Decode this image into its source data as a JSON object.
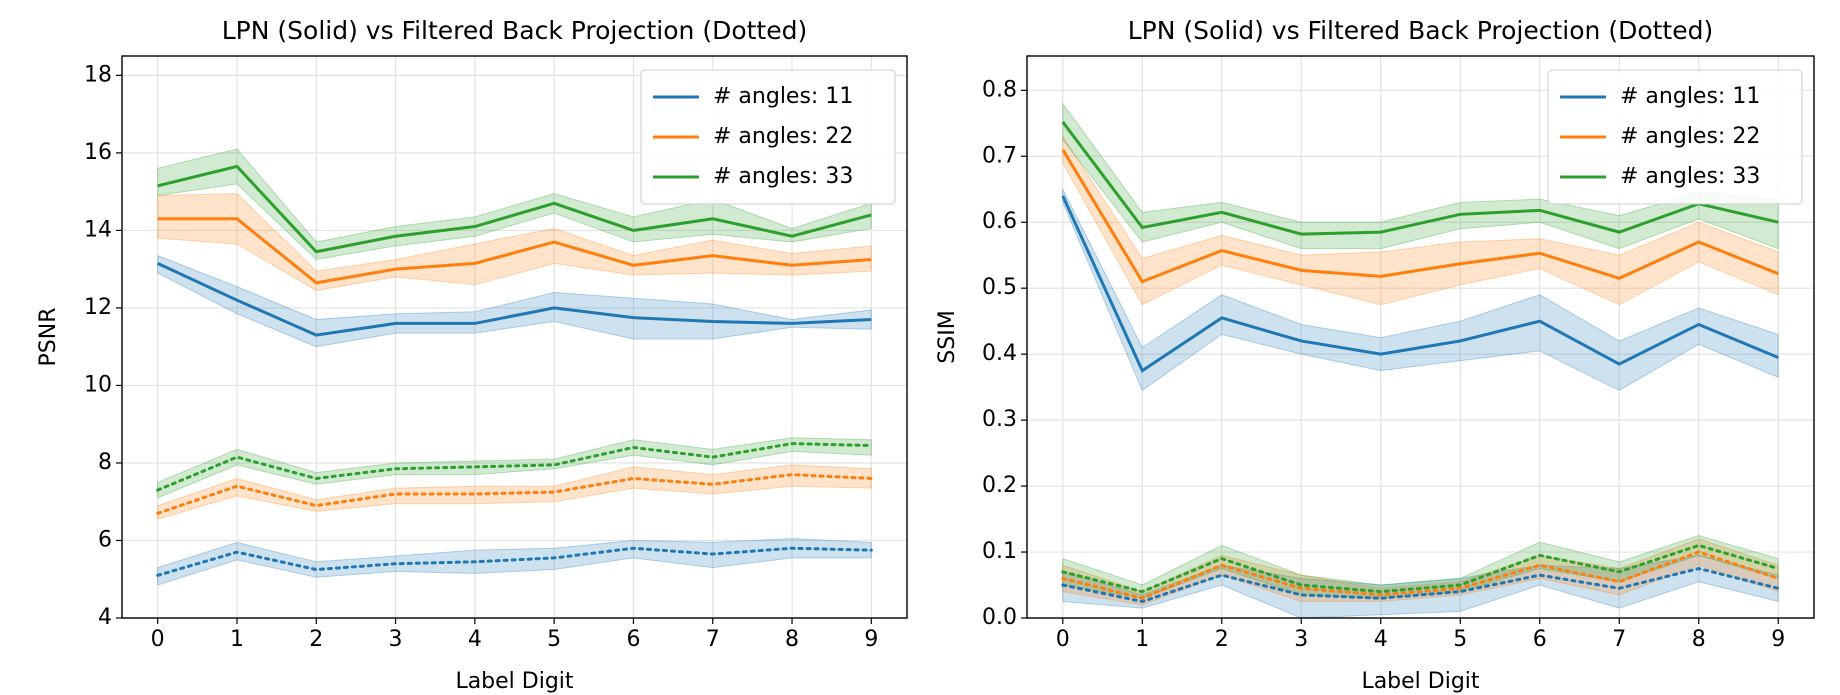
{
  "chart_data": [
    {
      "type": "line",
      "title": "LPN (Solid) vs Filtered Back Projection (Dotted)",
      "xlabel": "Label Digit",
      "ylabel": "PSNR",
      "x": [
        0,
        1,
        2,
        3,
        4,
        5,
        6,
        7,
        8,
        9
      ],
      "xlim": [
        -0.45,
        9.45
      ],
      "xticks": [
        0,
        1,
        2,
        3,
        4,
        5,
        6,
        7,
        8,
        9
      ],
      "ylim": [
        4,
        18.5
      ],
      "yticks": [
        4,
        6,
        8,
        10,
        12,
        14,
        16,
        18
      ],
      "grid": true,
      "legend": "upper right",
      "series": [
        {
          "name": "# angles: 11",
          "color": "#1f77b4",
          "style": "solid",
          "values": [
            13.15,
            12.2,
            11.3,
            11.6,
            11.6,
            12.0,
            11.75,
            11.65,
            11.6,
            11.7
          ],
          "lower": [
            12.9,
            11.85,
            11.0,
            11.35,
            11.35,
            11.65,
            11.2,
            11.2,
            11.5,
            11.45
          ],
          "upper": [
            13.35,
            12.55,
            11.7,
            11.85,
            11.9,
            12.4,
            12.25,
            12.1,
            11.7,
            11.95
          ]
        },
        {
          "name": "# angles: 22",
          "color": "#ff7f0e",
          "style": "solid",
          "values": [
            14.3,
            14.3,
            12.65,
            13.0,
            13.15,
            13.7,
            13.1,
            13.35,
            13.1,
            13.25
          ],
          "lower": [
            13.8,
            13.65,
            12.45,
            12.8,
            12.6,
            13.15,
            12.85,
            12.9,
            12.85,
            12.95
          ],
          "upper": [
            14.9,
            14.95,
            12.95,
            13.25,
            13.65,
            14.05,
            13.35,
            13.75,
            13.4,
            13.6
          ]
        },
        {
          "name": "# angles: 33",
          "color": "#2ca02c",
          "style": "solid",
          "values": [
            15.15,
            15.65,
            13.45,
            13.85,
            14.1,
            14.7,
            14.0,
            14.3,
            13.85,
            14.4
          ],
          "lower": [
            14.9,
            15.2,
            13.25,
            13.6,
            13.85,
            14.45,
            13.7,
            13.9,
            13.7,
            14.05
          ],
          "upper": [
            15.6,
            16.1,
            13.7,
            14.1,
            14.35,
            14.95,
            14.35,
            14.8,
            14.05,
            14.7
          ]
        },
        {
          "color": "#1f77b4",
          "style": "dotted",
          "values": [
            5.1,
            5.7,
            5.25,
            5.4,
            5.45,
            5.55,
            5.8,
            5.65,
            5.8,
            5.75
          ],
          "lower": [
            4.85,
            5.5,
            5.05,
            5.2,
            5.15,
            5.25,
            5.55,
            5.3,
            5.55,
            5.55
          ],
          "upper": [
            5.3,
            5.95,
            5.45,
            5.6,
            5.75,
            5.8,
            6.0,
            5.95,
            6.05,
            5.95
          ]
        },
        {
          "color": "#ff7f0e",
          "style": "dotted",
          "values": [
            6.7,
            7.4,
            6.9,
            7.2,
            7.2,
            7.25,
            7.6,
            7.45,
            7.7,
            7.6
          ],
          "lower": [
            6.55,
            7.15,
            6.75,
            6.95,
            6.95,
            7.0,
            7.35,
            7.2,
            7.4,
            7.35
          ],
          "upper": [
            6.9,
            7.6,
            7.05,
            7.35,
            7.4,
            7.4,
            7.9,
            7.7,
            7.95,
            7.85
          ]
        },
        {
          "color": "#2ca02c",
          "style": "dotted",
          "values": [
            7.3,
            8.15,
            7.6,
            7.85,
            7.9,
            7.95,
            8.4,
            8.15,
            8.5,
            8.45
          ],
          "lower": [
            7.1,
            7.95,
            7.45,
            7.7,
            7.7,
            7.85,
            8.2,
            7.95,
            8.3,
            8.2
          ],
          "upper": [
            7.5,
            8.35,
            7.75,
            8.0,
            8.05,
            8.1,
            8.6,
            8.35,
            8.65,
            8.6
          ]
        }
      ]
    },
    {
      "type": "line",
      "title": "LPN (Solid) vs Filtered Back Projection (Dotted)",
      "xlabel": "Label Digit",
      "ylabel": "SSIM",
      "x": [
        0,
        1,
        2,
        3,
        4,
        5,
        6,
        7,
        8,
        9
      ],
      "xlim": [
        -0.45,
        9.45
      ],
      "xticks": [
        0,
        1,
        2,
        3,
        4,
        5,
        6,
        7,
        8,
        9
      ],
      "ylim": [
        0,
        0.852
      ],
      "yticks": [
        {
          "value": 0,
          "label": "0.0"
        },
        0.1,
        0.2,
        0.3,
        0.4,
        0.5,
        0.6,
        0.7,
        0.8
      ],
      "grid": true,
      "legend": "upper right",
      "series": [
        {
          "name": "# angles: 11",
          "color": "#1f77b4",
          "style": "solid",
          "values": [
            0.64,
            0.375,
            0.455,
            0.42,
            0.4,
            0.42,
            0.45,
            0.385,
            0.445,
            0.395
          ],
          "lower": [
            0.63,
            0.345,
            0.43,
            0.4,
            0.375,
            0.39,
            0.405,
            0.345,
            0.415,
            0.365
          ],
          "upper": [
            0.65,
            0.41,
            0.49,
            0.445,
            0.425,
            0.45,
            0.49,
            0.42,
            0.47,
            0.43
          ]
        },
        {
          "name": "# angles: 22",
          "color": "#ff7f0e",
          "style": "solid",
          "values": [
            0.71,
            0.51,
            0.557,
            0.527,
            0.518,
            0.537,
            0.553,
            0.515,
            0.57,
            0.522
          ],
          "lower": [
            0.69,
            0.475,
            0.535,
            0.505,
            0.475,
            0.505,
            0.53,
            0.475,
            0.54,
            0.49
          ],
          "upper": [
            0.73,
            0.545,
            0.58,
            0.55,
            0.555,
            0.57,
            0.575,
            0.55,
            0.6,
            0.555
          ]
        },
        {
          "name": "# angles: 33",
          "color": "#2ca02c",
          "style": "solid",
          "values": [
            0.752,
            0.592,
            0.615,
            0.582,
            0.585,
            0.612,
            0.618,
            0.585,
            0.628,
            0.6
          ],
          "lower": [
            0.725,
            0.57,
            0.6,
            0.56,
            0.56,
            0.59,
            0.6,
            0.56,
            0.605,
            0.56
          ],
          "upper": [
            0.78,
            0.615,
            0.63,
            0.6,
            0.6,
            0.63,
            0.635,
            0.61,
            0.645,
            0.635
          ]
        },
        {
          "color": "#1f77b4",
          "style": "dotted",
          "values": [
            0.05,
            0.025,
            0.065,
            0.035,
            0.03,
            0.04,
            0.065,
            0.045,
            0.075,
            0.045
          ],
          "lower": [
            0.025,
            0.015,
            0.05,
            0.0,
            0.005,
            0.01,
            0.05,
            0.015,
            0.055,
            0.025
          ],
          "upper": [
            0.07,
            0.035,
            0.08,
            0.06,
            0.05,
            0.06,
            0.08,
            0.075,
            0.095,
            0.065
          ]
        },
        {
          "color": "#ff7f0e",
          "style": "dotted",
          "values": [
            0.06,
            0.03,
            0.08,
            0.045,
            0.035,
            0.045,
            0.08,
            0.055,
            0.1,
            0.06
          ],
          "lower": [
            0.04,
            0.02,
            0.065,
            0.025,
            0.025,
            0.035,
            0.06,
            0.035,
            0.08,
            0.04
          ],
          "upper": [
            0.08,
            0.04,
            0.095,
            0.065,
            0.045,
            0.055,
            0.095,
            0.075,
            0.12,
            0.08
          ]
        },
        {
          "color": "#2ca02c",
          "style": "dotted",
          "values": [
            0.07,
            0.04,
            0.09,
            0.05,
            0.04,
            0.05,
            0.095,
            0.07,
            0.11,
            0.075
          ],
          "lower": [
            0.05,
            0.03,
            0.075,
            0.035,
            0.03,
            0.04,
            0.075,
            0.055,
            0.095,
            0.06
          ],
          "upper": [
            0.09,
            0.05,
            0.11,
            0.065,
            0.05,
            0.06,
            0.115,
            0.085,
            0.125,
            0.09
          ]
        }
      ]
    }
  ]
}
